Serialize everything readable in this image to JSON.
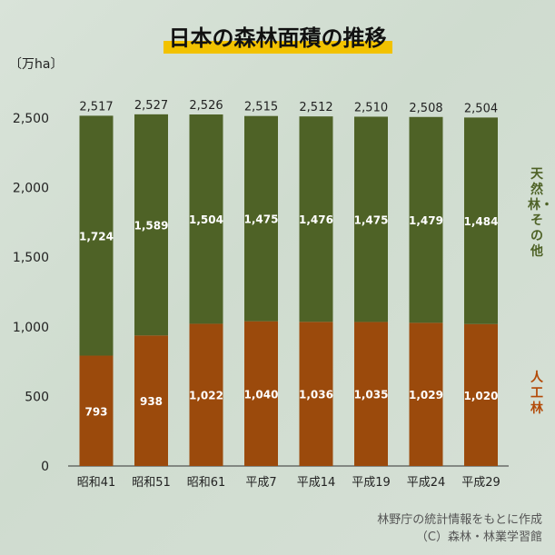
{
  "title": "日本の森林面積の推移",
  "unit": "〔万ha〕",
  "source": {
    "line1": "林野庁の統計情報をもとに作成",
    "line2": "（C）森林・林業学習館"
  },
  "colors": {
    "natural": "#4e6226",
    "planted": "#9b4a0c",
    "natural_label": "#4e6226",
    "planted_label": "#b34a08",
    "title_highlight": "#f2c200"
  },
  "chart_data": {
    "type": "bar",
    "stacked": true,
    "categories": [
      "昭和41",
      "昭和51",
      "昭和61",
      "平成7",
      "平成14",
      "平成19",
      "平成24",
      "平成29"
    ],
    "series": [
      {
        "name": "人工林",
        "values": [
          793,
          938,
          1022,
          1040,
          1036,
          1035,
          1029,
          1020
        ]
      },
      {
        "name": "天然林・その他",
        "values": [
          1724,
          1589,
          1504,
          1475,
          1476,
          1475,
          1479,
          1484
        ]
      }
    ],
    "totals": [
      2517,
      2527,
      2526,
      2515,
      2512,
      2510,
      2508,
      2504
    ],
    "ylim": [
      0,
      2500
    ],
    "yticks": [
      0,
      500,
      1000,
      1500,
      2000,
      2500
    ],
    "grid": false,
    "legend": "right"
  }
}
